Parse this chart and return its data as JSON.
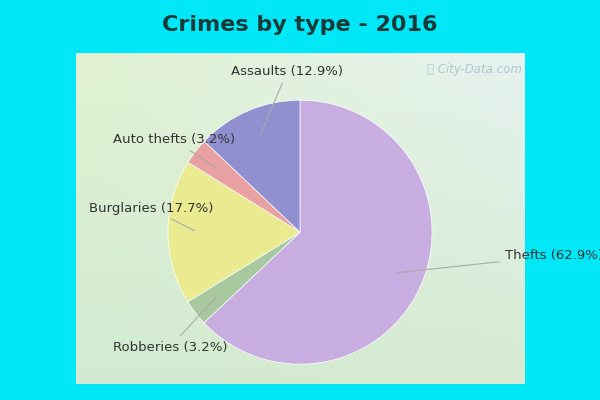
{
  "title": "Crimes by type - 2016",
  "slices": [
    {
      "label": "Thefts",
      "pct": 62.9,
      "color": "#c8aee0"
    },
    {
      "label": "Robberies",
      "pct": 3.2,
      "color": "#a8c8a0"
    },
    {
      "label": "Burglaries",
      "pct": 17.7,
      "color": "#eaea90"
    },
    {
      "label": "Auto thefts",
      "pct": 3.2,
      "color": "#e8a0a0"
    },
    {
      "label": "Assaults",
      "pct": 12.9,
      "color": "#9090d0"
    }
  ],
  "background_cyan": "#00e8f8",
  "title_fontsize": 16,
  "label_fontsize": 9.5,
  "watermark": "ⓘ City-Data.com",
  "label_color": "#333333",
  "top_bar_height": 0.125,
  "bottom_bar_height": 0.04,
  "side_bar_width": 0.018
}
